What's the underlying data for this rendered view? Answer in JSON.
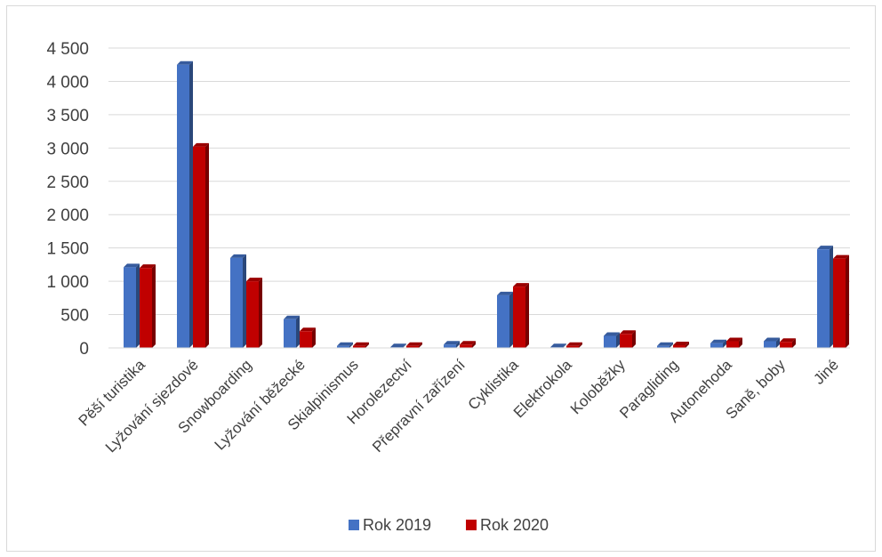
{
  "chart_data": {
    "type": "bar",
    "title": "",
    "xlabel": "",
    "ylabel": "",
    "ylim": [
      0,
      4500
    ],
    "yticks": [
      0,
      500,
      1000,
      1500,
      2000,
      2500,
      3000,
      3500,
      4000,
      4500
    ],
    "ytick_labels": [
      "0",
      "500",
      "1 000",
      "1 500",
      "2 000",
      "2 500",
      "3 000",
      "3 500",
      "4 000",
      "4 500"
    ],
    "grid": true,
    "legend_position": "bottom",
    "categories": [
      "Pěší turistika",
      "Lyžování sjezdové",
      "Snowboarding",
      "Lyžování běžecké",
      "Skialpinismus",
      "Horolezectví",
      "Přepravní zařízení",
      "Cyklistika",
      "Elektrokola",
      "Koloběžky",
      "Paragliding",
      "Autonehoda",
      "Saně, boby",
      "Jiné"
    ],
    "series": [
      {
        "name": "Rok 2019",
        "color": "#4472c4",
        "values": [
          1210,
          4250,
          1350,
          430,
          30,
          10,
          50,
          790,
          10,
          180,
          30,
          70,
          100,
          1480
        ]
      },
      {
        "name": "Rok 2020",
        "color": "#c00000",
        "values": [
          1200,
          3020,
          1000,
          250,
          30,
          30,
          50,
          920,
          30,
          210,
          40,
          100,
          90,
          1340
        ]
      }
    ]
  }
}
